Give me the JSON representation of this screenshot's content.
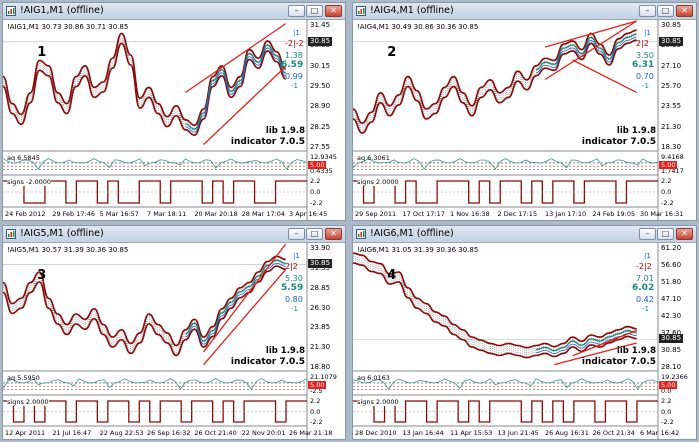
{
  "windows": [
    {
      "id": "w1",
      "title": "!AIG1,M1  (offline)",
      "info": "!AIG1,M1  30.73 30.86 30.71 30.85",
      "number": "1",
      "price_labels": [
        "31.45",
        "30.85",
        "30.15",
        "29.50",
        "28.90",
        "28.25",
        "27.55"
      ],
      "price_box": "30.85",
      "ind": {
        "a": "-2|-2",
        "b": "|1",
        "c": "1.38",
        "d": "6.59",
        "e": "0.99",
        "f": "-1"
      },
      "lib": "lib 1.9.8",
      "indicator": "indicator 7.0.5",
      "aq_label": "aq 6.5845",
      "aq_right": [
        "12.9345",
        "0.4335"
      ],
      "aq_box": "5.00",
      "signs_label": "signs -2.0000",
      "signs_right": [
        "2.2",
        "0.0",
        "-2.2"
      ],
      "dates": [
        "24 Feb 2012",
        "29 Feb 17:46",
        "5 Mar 16:57",
        "7 Mar 18:11",
        "20 Mar 20:18",
        "28 Mar 17:04",
        "3 Apr 16:45"
      ]
    },
    {
      "id": "w2",
      "title": "!AIG4,M1  (offline)",
      "info": "!AIG4,M1  30.49 30.86 30.36 30.85",
      "number": "2",
      "price_labels": [
        "30.85",
        "28.35",
        "27.10",
        "25.70",
        "23.55",
        "21.30",
        "18.30"
      ],
      "price_box": "30.85",
      "ind": {
        "a": "2|2",
        "b": "|1",
        "c": "3.50",
        "d": "6.31",
        "e": "0.70",
        "f": "-1"
      },
      "lib": "lib 1.9.8",
      "indicator": "indicator 7.0.5",
      "aq_label": "aq 6.3061",
      "aq_right": [
        "9.4168",
        "1.7417"
      ],
      "aq_box": "5.00",
      "signs_label": "signs 2.0000",
      "signs_right": [
        "2.2",
        "0.0",
        "-2.2"
      ],
      "dates": [
        "29 Sep 2011",
        "17 Oct 17:17",
        "1 Nov 16:38",
        "2 Dec 17:15",
        "13 Jan 17:10",
        "24 Feb 19:05",
        "30 Mar 16:31"
      ]
    },
    {
      "id": "w3",
      "title": "!AIG5,M1  (offline)",
      "info": "!AIG5,M1  30.57 31.39 30.36 30.85",
      "number": "3",
      "price_labels": [
        "33.90",
        "31.35",
        "28.85",
        "26.30",
        "23.85",
        "21.30",
        "18.80"
      ],
      "price_box": "30.85",
      "ind": {
        "a": "2|2",
        "b": "|1",
        "c": "5.30",
        "d": "5.59",
        "e": "0.80",
        "f": "-1"
      },
      "lib": "lib 1.9.8",
      "indicator": "indicator 7.0.5",
      "aq_label": "aq 5.5950",
      "aq_right": [
        "21.1079",
        "-2.5"
      ],
      "aq_box": "5.00",
      "signs_label": "signs 2.0000",
      "signs_right": [
        "2.2",
        "0.0",
        "-2.2"
      ],
      "dates": [
        "12 Apr 2011",
        "21 Jul 16:47",
        "22 Aug 22:53",
        "26 Sep 16:32",
        "26 Oct 21:40",
        "22 Nov 20:01",
        "26 Mar 21:18"
      ]
    },
    {
      "id": "w4",
      "title": "!AIG6,M1  (offline)",
      "info": "!AIG6,M1  31.05 31.39 30.36 30.85",
      "number": "4",
      "price_labels": [
        "61.20",
        "56.60",
        "51.80",
        "47.10",
        "42.30",
        "37.60",
        "30.85",
        "28.10"
      ],
      "price_box": "30.85",
      "ind": {
        "a": "-2|2",
        "b": "|1",
        "c": "7.01",
        "d": "6.02",
        "e": "0.42",
        "f": "-1"
      },
      "lib": "lib 1.9.8",
      "indicator": "indicator 7.0.5",
      "aq_label": "aq 6.0163",
      "aq_right": [
        "19.2366",
        "0.0"
      ],
      "aq_box": "5.00",
      "signs_label": "signs 2.0000",
      "signs_right": [
        "2.2",
        "0.0",
        "-2.2"
      ],
      "dates": [
        "28 Dec 2010",
        "13 Jan 16:44",
        "11 Apr 15:53",
        "13 Jun 21:45",
        "26 Aug 16:31",
        "26 Oct 21:34",
        "6 Mar 16:42"
      ]
    }
  ],
  "colors": {
    "ind_green": "#1a8a7a",
    "ind_blue": "#1a5fd0",
    "red": "#e8201c",
    "dark_red": "#8b0a0a"
  }
}
